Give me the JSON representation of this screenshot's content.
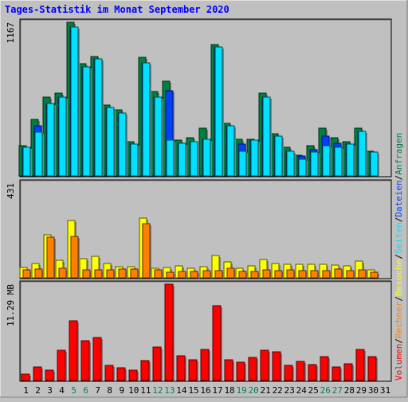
{
  "chart_data": {
    "title": "Tages-Statistik im Monat September 2020",
    "categories": [
      "1",
      "2",
      "3",
      "4",
      "5",
      "6",
      "7",
      "8",
      "9",
      "10",
      "11",
      "12",
      "13",
      "14",
      "15",
      "16",
      "17",
      "18",
      "19",
      "20",
      "21",
      "22",
      "23",
      "24",
      "25",
      "26",
      "27",
      "28",
      "29",
      "30",
      "31"
    ],
    "weekend_days": [
      "5",
      "6",
      "12",
      "13",
      "19",
      "20",
      "26",
      "27"
    ],
    "panels": [
      {
        "type": "bar",
        "name": "requests-files-pages",
        "max_label": "1167",
        "ylim": [
          0,
          1167
        ],
        "series": [
          {
            "name": "Anfragen",
            "color": "#008040",
            "values": [
              230,
              430,
              600,
              630,
              1167,
              850,
              910,
              540,
              500,
              260,
              900,
              640,
              720,
              270,
              290,
              360,
              1000,
              400,
              280,
              280,
              630,
              320,
              220,
              160,
              230,
              360,
              290,
              260,
              360,
              190
            ]
          },
          {
            "name": "Dateien",
            "color": "#0040ff",
            "values": [
              220,
              380,
              550,
              600,
              1130,
              830,
              890,
              520,
              480,
              240,
              860,
              600,
              650,
              250,
              260,
              280,
              980,
              380,
              240,
              270,
              600,
              300,
              190,
              150,
              200,
              300,
              250,
              240,
              340,
              180
            ]
          },
          {
            "name": "Seiten",
            "color": "#00e0ff",
            "values": [
              220,
              330,
              550,
              600,
              1130,
              830,
              890,
              520,
              480,
              240,
              860,
              600,
              270,
              250,
              260,
              280,
              980,
              380,
              190,
              270,
              600,
              300,
              190,
              130,
              180,
              230,
              220,
              240,
              340,
              180
            ]
          }
        ]
      },
      {
        "type": "bar",
        "name": "visits-hosts",
        "max_label": "431",
        "ylim": [
          0,
          431
        ],
        "series": [
          {
            "name": "Besuche",
            "color": "#ffff00",
            "values": [
              48,
              66,
              195,
              80,
              262,
              88,
              96,
              65,
              50,
              49,
              273,
              45,
              48,
              56,
              42,
              51,
              103,
              72,
              42,
              54,
              83,
              64,
              60,
              60,
              62,
              61,
              58,
              55,
              76,
              38
            ]
          },
          {
            "name": "Rechner",
            "color": "#ff8000",
            "values": [
              35,
              40,
              183,
              45,
              190,
              35,
              35,
              36,
              40,
              40,
              245,
              36,
              26,
              30,
              30,
              34,
              33,
              43,
              29,
              30,
              35,
              34,
              35,
              33,
              34,
              33,
              40,
              34,
              35,
              26
            ]
          }
        ]
      },
      {
        "type": "bar",
        "name": "volume",
        "max_label": "11.29 MB",
        "ylim": [
          0,
          11.29
        ],
        "series": [
          {
            "name": "Volumen",
            "color": "#ff0000",
            "values": [
              0.7,
              1.55,
              1.2,
              3.5,
              7.0,
              4.7,
              5.0,
              1.75,
              1.45,
              1.2,
              2.3,
              3.9,
              11.29,
              2.9,
              2.4,
              3.6,
              8.8,
              2.4,
              2.1,
              2.7,
              3.5,
              3.4,
              1.8,
              2.2,
              1.9,
              2.8,
              1.55,
              1.95,
              3.6,
              2.8
            ]
          }
        ]
      }
    ],
    "legend": {
      "items": [
        {
          "label": "Volumen",
          "color": "#ff0000"
        },
        {
          "label": "/",
          "color": "#000000"
        },
        {
          "label": "Rechner",
          "color": "#ff8000"
        },
        {
          "label": "/",
          "color": "#000000"
        },
        {
          "label": "Besuche",
          "color": "#ffff00"
        },
        {
          "label": "/",
          "color": "#000000"
        },
        {
          "label": "Seiten",
          "color": "#00e0ff"
        },
        {
          "label": "/",
          "color": "#000000"
        },
        {
          "label": "Dateien",
          "color": "#0040ff"
        },
        {
          "label": "/",
          "color": "#000000"
        },
        {
          "label": "Anfragen",
          "color": "#008040"
        }
      ],
      "placement": "right, vertical"
    },
    "colors": {
      "background": "#c0c0c0",
      "title": "#0000ff",
      "weekend_label": "#00805c",
      "weekday_label": "#000000"
    }
  }
}
